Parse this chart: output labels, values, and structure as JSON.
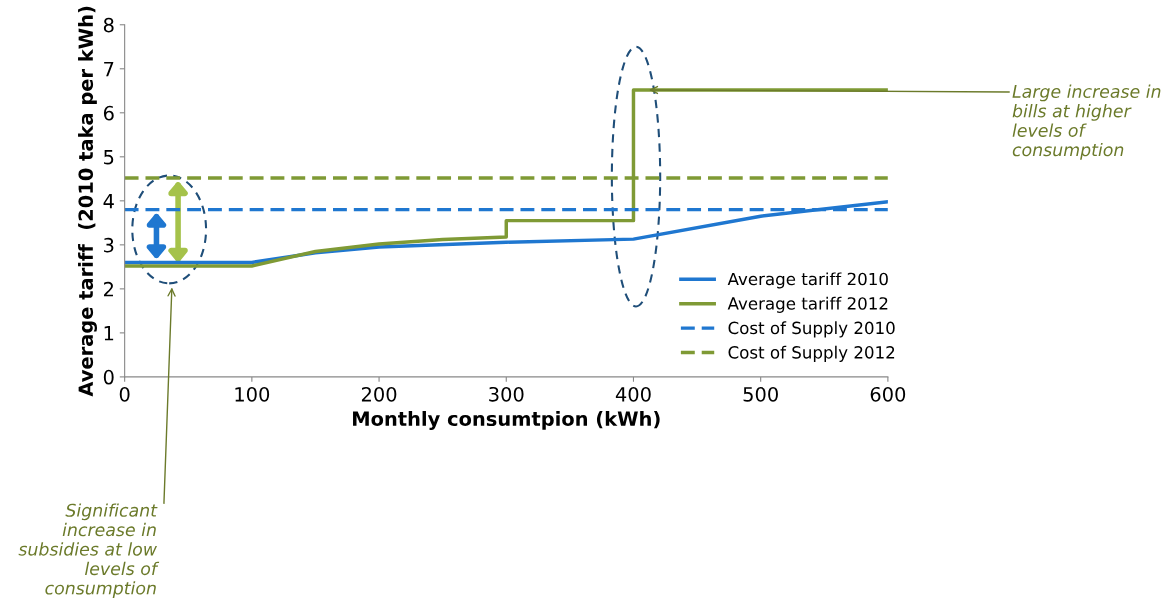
{
  "chart_data": {
    "type": "line",
    "xlabel": "Monthly consumtpion (kWh)",
    "ylabel": "Average tariff  (2010 taka per kWh)",
    "xlim": [
      0,
      600
    ],
    "xticks": [
      0,
      100,
      200,
      300,
      400,
      500,
      600
    ],
    "ylim": [
      0,
      8
    ],
    "yticks": [
      0,
      1,
      2,
      3,
      4,
      5,
      6,
      7,
      8
    ],
    "grid": false,
    "legend": "bottom right",
    "line_style": "solid",
    "series": [
      {
        "name": "Average tariff 2010",
        "color": "#1f77d0",
        "x": [
          0,
          100,
          150,
          200,
          300,
          400,
          500,
          600
        ],
        "values": [
          2.6,
          2.6,
          2.82,
          2.95,
          3.06,
          3.13,
          3.65,
          3.98
        ]
      },
      {
        "name": "Average tariff 2012",
        "color": "#7f9a35",
        "x": [
          0,
          100,
          150,
          200,
          250,
          300,
          300,
          400,
          400,
          600
        ],
        "values": [
          2.52,
          2.52,
          2.85,
          3.02,
          3.12,
          3.18,
          3.55,
          3.55,
          6.52,
          6.52
        ]
      },
      {
        "name": "Cost of Supply 2010",
        "color": "#1f77d0",
        "line_style": "dashed",
        "x": [
          0,
          600
        ],
        "values": [
          3.8,
          3.8
        ]
      },
      {
        "name": "Cost of Supply 2012",
        "color": "#7f9a35",
        "line_style": "dashed",
        "x": [
          0,
          600
        ],
        "values": [
          4.52,
          4.52
        ]
      }
    ],
    "annotations": [
      {
        "text": "Large increase in\nbills at higher\nlevels of\nconsumption",
        "x": 410,
        "y": 6.52
      },
      "Significant\nincrease in\nsubsidies at low\nlevels of\nconsumption"
    ]
  }
}
